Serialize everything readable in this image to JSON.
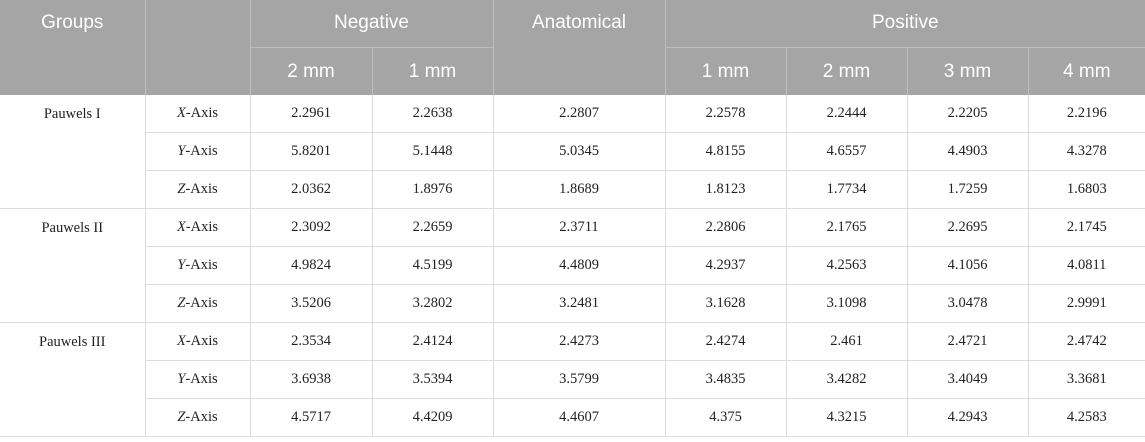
{
  "table": {
    "header": {
      "groups": "Groups",
      "negative": "Negative",
      "anatomical": "Anatomical",
      "positive": "Positive",
      "negative_sub": [
        "2 mm",
        "1 mm"
      ],
      "positive_sub": [
        "1 mm",
        "2 mm",
        "3 mm",
        "4 mm"
      ]
    },
    "groups": [
      {
        "name": "Pauwels I",
        "rows": [
          {
            "axis": "X-Axis",
            "values": [
              "2.2961",
              "2.2638",
              "2.2807",
              "2.2578",
              "2.2444",
              "2.2205",
              "2.2196"
            ]
          },
          {
            "axis": "Y-Axis",
            "values": [
              "5.8201",
              "5.1448",
              "5.0345",
              "4.8155",
              "4.6557",
              "4.4903",
              "4.3278"
            ]
          },
          {
            "axis": "Z-Axis",
            "values": [
              "2.0362",
              "1.8976",
              "1.8689",
              "1.8123",
              "1.7734",
              "1.7259",
              "1.6803"
            ]
          }
        ]
      },
      {
        "name": "Pauwels II",
        "rows": [
          {
            "axis": "X-Axis",
            "values": [
              "2.3092",
              "2.2659",
              "2.3711",
              "2.2806",
              "2.1765",
              "2.2695",
              "2.1745"
            ]
          },
          {
            "axis": "Y-Axis",
            "values": [
              "4.9824",
              "4.5199",
              "4.4809",
              "4.2937",
              "4.2563",
              "4.1056",
              "4.0811"
            ]
          },
          {
            "axis": "Z-Axis",
            "values": [
              "3.5206",
              "3.2802",
              "3.2481",
              "3.1628",
              "3.1098",
              "3.0478",
              "2.9991"
            ]
          }
        ]
      },
      {
        "name": "Pauwels III",
        "rows": [
          {
            "axis": "X-Axis",
            "values": [
              "2.3534",
              "2.4124",
              "2.4273",
              "2.4274",
              "2.461",
              "2.4721",
              "2.4742"
            ]
          },
          {
            "axis": "Y-Axis",
            "values": [
              "3.6938",
              "3.5394",
              "3.5799",
              "3.4835",
              "3.4282",
              "3.4049",
              "3.3681"
            ]
          },
          {
            "axis": "Z-Axis",
            "values": [
              "4.5717",
              "4.4209",
              "4.4607",
              "4.375",
              "4.3215",
              "4.2943",
              "4.2583"
            ]
          }
        ]
      }
    ]
  }
}
